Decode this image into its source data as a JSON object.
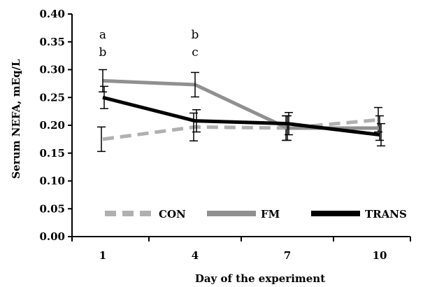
{
  "chart_data": {
    "type": "line",
    "xlabel": "Day of the experiment",
    "ylabel": "Serum NEFA, mEq/L",
    "categories": [
      "1",
      "4",
      "7",
      "10"
    ],
    "x": [
      1,
      4,
      7,
      10
    ],
    "xlim": [
      0,
      11
    ],
    "ylim": [
      0,
      0.4
    ],
    "yticks": [
      "0.00",
      "0.05",
      "0.10",
      "0.15",
      "0.20",
      "0.25",
      "0.30",
      "0.35",
      "0.40"
    ],
    "grid": false,
    "legend_position": "bottom",
    "series": [
      {
        "name": "CON",
        "values": [
          0.175,
          0.197,
          0.195,
          0.21
        ],
        "errors": [
          0.022,
          0.025,
          0.022,
          0.022
        ],
        "color": "#b0b0b0",
        "style": "dashed"
      },
      {
        "name": "FM",
        "values": [
          0.28,
          0.273,
          0.195,
          0.195
        ],
        "errors": [
          0.02,
          0.022,
          0.022,
          0.022
        ],
        "color": "#909090",
        "style": "solid"
      },
      {
        "name": "TRANS",
        "values": [
          0.25,
          0.208,
          0.203,
          0.183
        ],
        "errors": [
          0.02,
          0.02,
          0.02,
          0.02
        ],
        "color": "#000000",
        "style": "solid"
      }
    ],
    "annotations": [
      {
        "x": 1,
        "lines": [
          "a",
          "b"
        ]
      },
      {
        "x": 4,
        "lines": [
          "b",
          "c"
        ]
      }
    ]
  }
}
